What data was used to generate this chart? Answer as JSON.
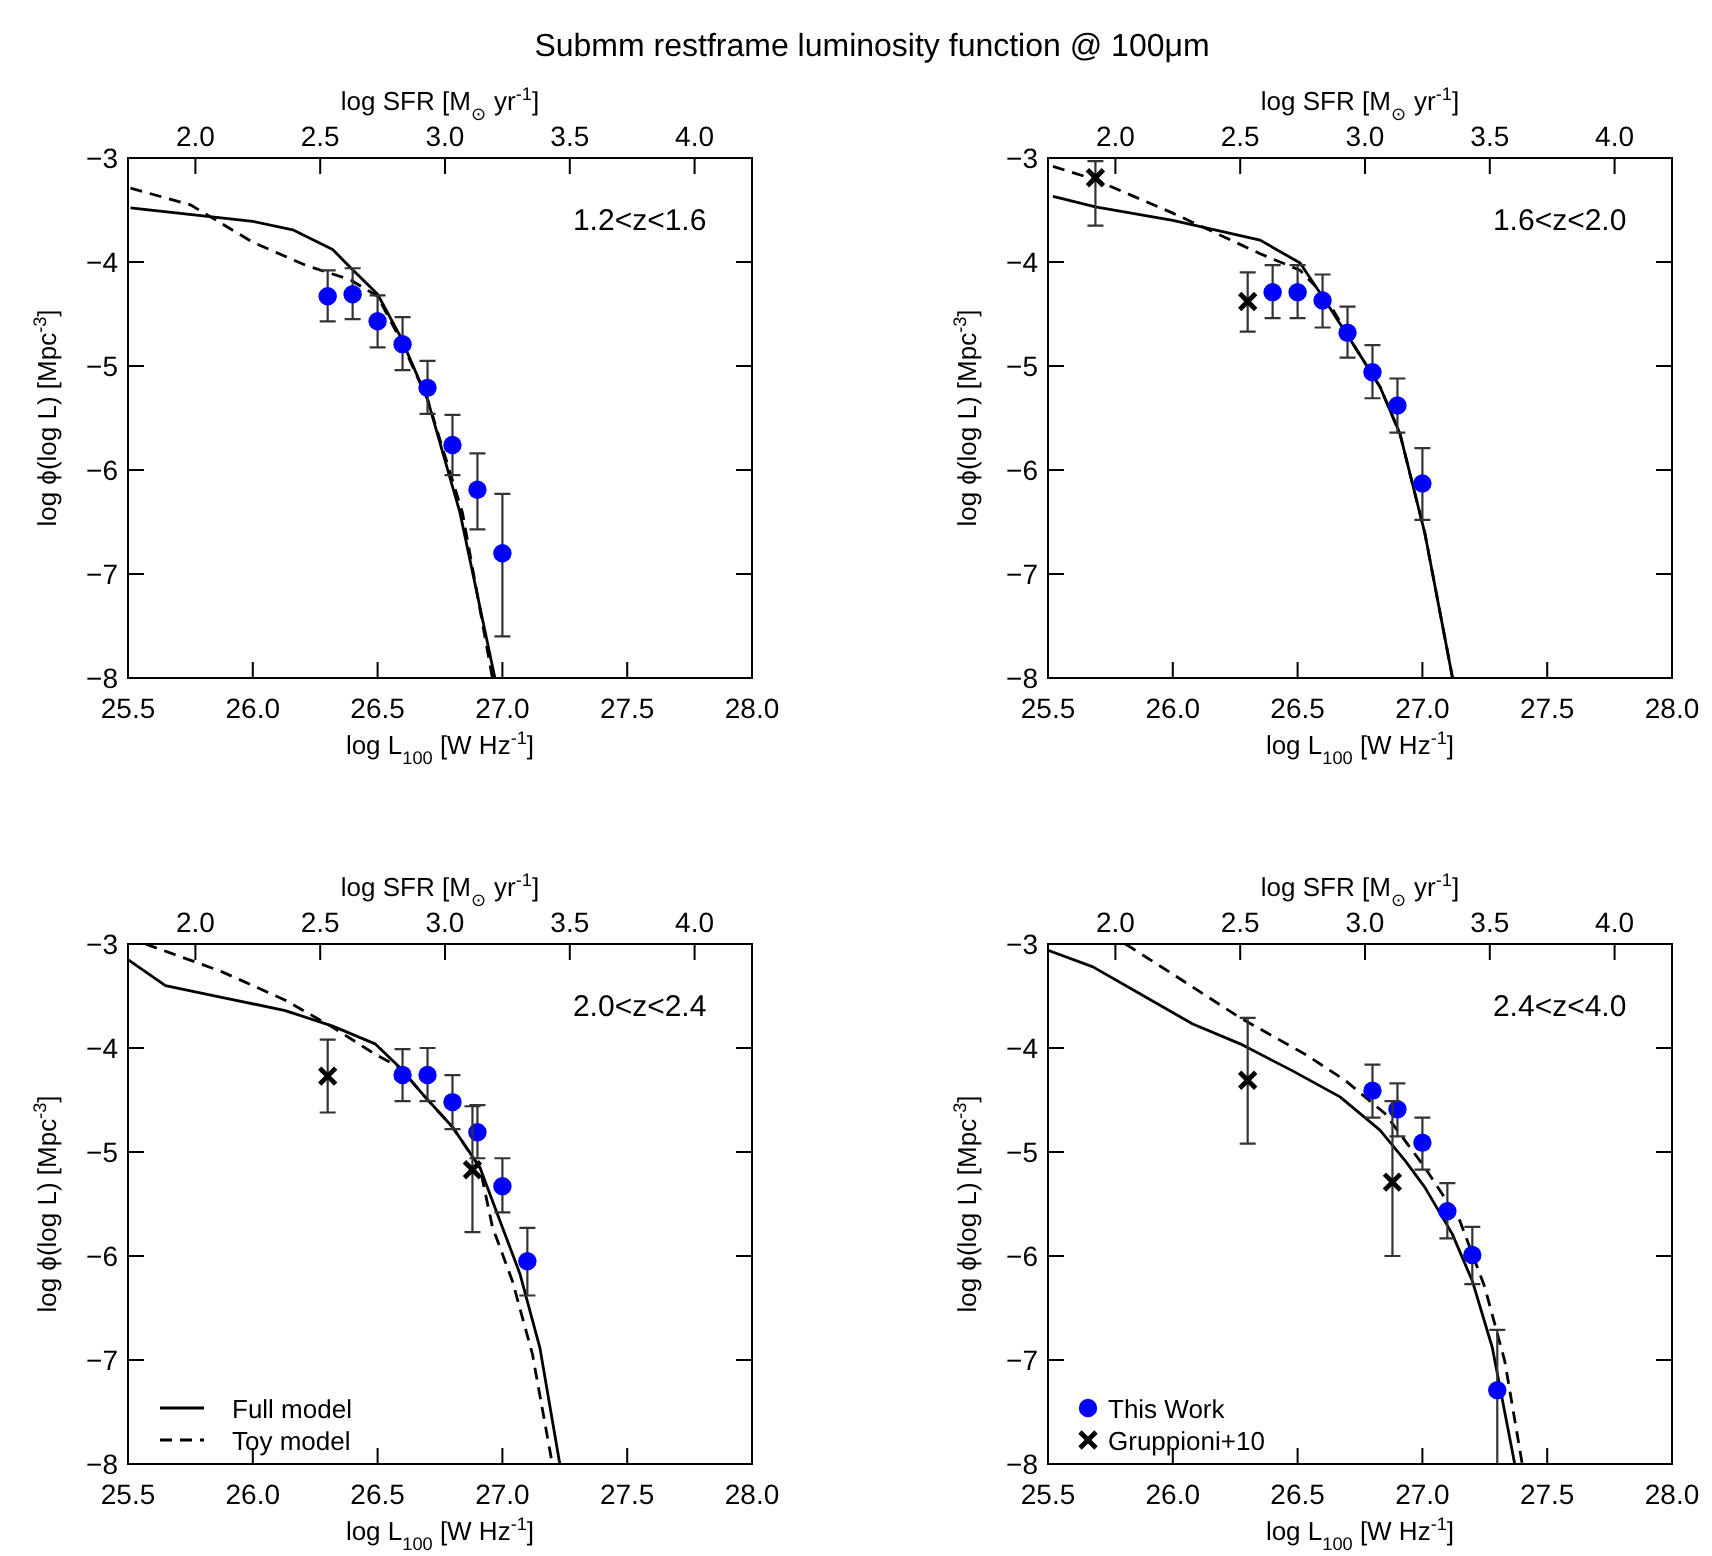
{
  "chart_data": [
    {
      "type": "line",
      "title": "Submm restframe luminosity function @ 100μm",
      "xlabel": "log L$_{100}$ [W Hz$^{-1}$]",
      "ylabel": "log ϕ(log L) [Mpc$^{-3}$]",
      "x2label": "log SFR [M$_{⊙}$ yr$^{-1}$]",
      "xlim": [
        25.5,
        28.0
      ],
      "xticks": [
        {
          "value": 25.5,
          "label": "25.5"
        },
        {
          "value": 26,
          "label": "26.0"
        },
        {
          "value": 26.5,
          "label": "26.5"
        },
        {
          "value": 27,
          "label": "27.0"
        },
        {
          "value": 27.5,
          "label": "27.5"
        },
        {
          "value": 28,
          "label": "28.0"
        }
      ],
      "x2lim": [
        1.73,
        4.23
      ],
      "x2ticks": [
        {
          "value": 2,
          "label": "2.0"
        },
        {
          "value": 2.5,
          "label": "2.5"
        },
        {
          "value": 3,
          "label": "3.0"
        },
        {
          "value": 3.5,
          "label": "3.5"
        },
        {
          "value": 4,
          "label": "4.0"
        }
      ],
      "ylim": [
        -8,
        -3
      ],
      "yticks": [
        -8,
        -7,
        -6,
        -5,
        -4,
        -3
      ],
      "annotations": [
        "1.2<z<1.6"
      ],
      "series": [
        {
          "type": "line",
          "color": "#000000",
          "line_style": "solid",
          "marker": "none",
          "x": [
            25.51,
            26.0,
            26.16,
            26.32,
            26.39,
            26.5,
            26.59,
            26.7,
            26.83,
            26.97
          ],
          "values": [
            -3.48,
            -3.61,
            -3.69,
            -3.88,
            -4.05,
            -4.31,
            -4.71,
            -5.32,
            -6.41,
            -8.0
          ]
        },
        {
          "type": "line",
          "color": "#000000",
          "line_style": "dashed",
          "marker": "none",
          "x": [
            25.51,
            25.75,
            26.0,
            26.21,
            26.39,
            26.5,
            26.59,
            26.7,
            26.84,
            26.96
          ],
          "values": [
            -3.29,
            -3.45,
            -3.81,
            -4.03,
            -4.17,
            -4.33,
            -4.74,
            -5.32,
            -6.41,
            -8.0
          ]
        },
        {
          "type": "scatter",
          "color": "#0000ff",
          "marker": "circle",
          "x": [
            26.3,
            26.4,
            26.5,
            26.6,
            26.7,
            26.8,
            26.9,
            27.0
          ],
          "values": [
            -4.33,
            -4.31,
            -4.57,
            -4.79,
            -5.21,
            -5.76,
            -6.19,
            -6.8
          ],
          "errors": [
            [
              -4.57,
              -4.08
            ],
            [
              -4.55,
              -4.06
            ],
            [
              -4.82,
              -4.32
            ],
            [
              -5.04,
              -4.53
            ],
            [
              -5.46,
              -4.95
            ],
            [
              -6.05,
              -5.47
            ],
            [
              -6.57,
              -5.84
            ],
            [
              -7.6,
              -6.23
            ]
          ]
        }
      ]
    },
    {
      "type": "line",
      "xlabel": "log L$_{100}$ [W Hz$^{-1}$]",
      "ylabel": "log ϕ(log L) [Mpc$^{-3}$]",
      "x2label": "log SFR [M$_{⊙}$ yr$^{-1}$]",
      "xlim": [
        25.5,
        28.0
      ],
      "xticks": [
        {
          "value": 25.5,
          "label": "25.5"
        },
        {
          "value": 26,
          "label": "26.0"
        },
        {
          "value": 26.5,
          "label": "26.5"
        },
        {
          "value": 27,
          "label": "27.0"
        },
        {
          "value": 27.5,
          "label": "27.5"
        },
        {
          "value": 28,
          "label": "28.0"
        }
      ],
      "x2lim": [
        1.73,
        4.23
      ],
      "x2ticks": [
        {
          "value": 2,
          "label": "2.0"
        },
        {
          "value": 2.5,
          "label": "2.5"
        },
        {
          "value": 3,
          "label": "3.0"
        },
        {
          "value": 3.5,
          "label": "3.5"
        },
        {
          "value": 4,
          "label": "4.0"
        }
      ],
      "ylim": [
        -8,
        -3
      ],
      "yticks": [
        -8,
        -7,
        -6,
        -5,
        -4,
        -3
      ],
      "annotations": [
        "1.6<z<2.0"
      ],
      "series": [
        {
          "type": "line",
          "color": "#000000",
          "line_style": "solid",
          "marker": "none",
          "x": [
            25.52,
            25.69,
            26.0,
            26.35,
            26.51,
            26.61,
            26.72,
            26.83,
            26.91,
            27.01,
            27.12
          ],
          "values": [
            -3.37,
            -3.47,
            -3.6,
            -3.79,
            -4.01,
            -4.37,
            -4.78,
            -5.2,
            -5.65,
            -6.61,
            -7.99
          ]
        },
        {
          "type": "line",
          "color": "#000000",
          "line_style": "dashed",
          "marker": "none",
          "x": [
            25.52,
            25.69,
            26.0,
            26.35,
            26.51,
            26.61,
            26.72,
            26.83,
            26.91,
            27.01,
            27.12
          ],
          "values": [
            -3.08,
            -3.21,
            -3.53,
            -3.92,
            -4.08,
            -4.33,
            -4.78,
            -5.2,
            -5.65,
            -6.61,
            -7.99
          ]
        },
        {
          "type": "scatter",
          "color": "#0000ff",
          "marker": "circle",
          "x": [
            26.4,
            26.5,
            26.6,
            26.7,
            26.8,
            26.9,
            27.0
          ],
          "values": [
            -4.29,
            -4.29,
            -4.37,
            -4.68,
            -5.06,
            -5.38,
            -6.13
          ],
          "errors": [
            [
              -4.54,
              -4.03
            ],
            [
              -4.54,
              -4.03
            ],
            [
              -4.63,
              -4.12
            ],
            [
              -4.92,
              -4.43
            ],
            [
              -5.31,
              -4.8
            ],
            [
              -5.64,
              -5.12
            ],
            [
              -6.48,
              -5.79
            ]
          ]
        },
        {
          "type": "scatter",
          "color": "#000000",
          "marker": "cross",
          "x": [
            25.69,
            26.3
          ],
          "values": [
            -3.19,
            -4.38
          ],
          "errors": [
            [
              -3.65,
              -3.03
            ],
            [
              -4.67,
              -4.1
            ]
          ]
        }
      ]
    },
    {
      "type": "line",
      "xlabel": "log L$_{100}$ [W Hz$^{-1}$]",
      "ylabel": "log ϕ(log L) [Mpc$^{-3}$]",
      "x2label": "log SFR [M$_{⊙}$ yr$^{-1}$]",
      "xlim": [
        25.5,
        28.0
      ],
      "xticks": [
        {
          "value": 25.5,
          "label": "25.5"
        },
        {
          "value": 26,
          "label": "26.0"
        },
        {
          "value": 26.5,
          "label": "26.5"
        },
        {
          "value": 27,
          "label": "27.0"
        },
        {
          "value": 27.5,
          "label": "27.5"
        },
        {
          "value": 28,
          "label": "28.0"
        }
      ],
      "x2lim": [
        1.73,
        4.23
      ],
      "x2ticks": [
        {
          "value": 2,
          "label": "2.0"
        },
        {
          "value": 2.5,
          "label": "2.5"
        },
        {
          "value": 3,
          "label": "3.0"
        },
        {
          "value": 3.5,
          "label": "3.5"
        },
        {
          "value": 4,
          "label": "4.0"
        }
      ],
      "ylim": [
        -8,
        -3
      ],
      "yticks": [
        -8,
        -7,
        -6,
        -5,
        -4,
        -3
      ],
      "annotations": [
        "2.0<z<2.4"
      ],
      "legend": "bottom left",
      "series": [
        {
          "name": "Full model",
          "type": "line",
          "color": "#000000",
          "line_style": "solid",
          "marker": "none",
          "x": [
            25.5,
            25.65,
            25.87,
            26.13,
            26.32,
            26.49,
            26.59,
            26.69,
            26.8,
            26.91,
            26.99,
            27.07,
            27.15,
            27.23
          ],
          "values": [
            -3.15,
            -3.4,
            -3.51,
            -3.64,
            -3.79,
            -3.96,
            -4.19,
            -4.47,
            -4.76,
            -5.15,
            -5.66,
            -6.17,
            -6.88,
            -8.0
          ]
        },
        {
          "name": "Toy model",
          "type": "line",
          "color": "#000000",
          "line_style": "dashed",
          "marker": "none",
          "x": [
            25.57,
            25.87,
            26.13,
            26.32,
            26.49,
            26.59,
            26.69,
            26.8,
            26.91,
            26.96,
            27.04,
            27.12,
            27.2
          ],
          "values": [
            -3.0,
            -3.26,
            -3.54,
            -3.8,
            -4.06,
            -4.19,
            -4.47,
            -4.76,
            -5.15,
            -5.72,
            -6.24,
            -6.94,
            -8.0
          ]
        },
        {
          "type": "scatter",
          "color": "#0000ff",
          "marker": "circle",
          "x": [
            26.6,
            26.7,
            26.8,
            26.9,
            27.0,
            27.1
          ],
          "values": [
            -4.26,
            -4.26,
            -4.52,
            -4.81,
            -5.33,
            -6.05
          ],
          "errors": [
            [
              -4.51,
              -4.01
            ],
            [
              -4.51,
              -4.0
            ],
            [
              -4.78,
              -4.26
            ],
            [
              -5.06,
              -4.55
            ],
            [
              -5.58,
              -5.06
            ],
            [
              -6.38,
              -5.73
            ]
          ]
        },
        {
          "type": "scatter",
          "color": "#000000",
          "marker": "cross",
          "x": [
            26.3,
            26.88
          ],
          "values": [
            -4.27,
            -5.17
          ],
          "errors": [
            [
              -4.62,
              -3.92
            ],
            [
              -5.77,
              -4.56
            ]
          ]
        }
      ]
    },
    {
      "type": "line",
      "xlabel": "log L$_{100}$ [W Hz$^{-1}$]",
      "ylabel": "log ϕ(log L) [Mpc$^{-3}$]",
      "x2label": "log SFR [M$_{⊙}$ yr$^{-1}$]",
      "xlim": [
        25.5,
        28.0
      ],
      "xticks": [
        {
          "value": 25.5,
          "label": "25.5"
        },
        {
          "value": 26,
          "label": "26.0"
        },
        {
          "value": 26.5,
          "label": "26.5"
        },
        {
          "value": 27,
          "label": "27.0"
        },
        {
          "value": 27.5,
          "label": "27.5"
        },
        {
          "value": 28,
          "label": "28.0"
        }
      ],
      "x2lim": [
        1.73,
        4.23
      ],
      "x2ticks": [
        {
          "value": 2,
          "label": "2.0"
        },
        {
          "value": 2.5,
          "label": "2.5"
        },
        {
          "value": 3,
          "label": "3.0"
        },
        {
          "value": 3.5,
          "label": "3.5"
        },
        {
          "value": 4,
          "label": "4.0"
        }
      ],
      "ylim": [
        -8,
        -3
      ],
      "yticks": [
        -8,
        -7,
        -6,
        -5,
        -4,
        -3
      ],
      "annotations": [
        "2.4<z<4.0"
      ],
      "legend": "bottom left",
      "series": [
        {
          "type": "line",
          "color": "#000000",
          "line_style": "solid",
          "marker": "none",
          "x": [
            25.5,
            25.68,
            25.87,
            26.08,
            26.27,
            26.48,
            26.67,
            26.83,
            26.93,
            27.01,
            27.12,
            27.2,
            27.28,
            27.37
          ],
          "values": [
            -3.06,
            -3.22,
            -3.48,
            -3.77,
            -3.96,
            -4.22,
            -4.47,
            -4.79,
            -5.08,
            -5.34,
            -5.79,
            -6.24,
            -6.88,
            -8.0
          ]
        },
        {
          "type": "line",
          "color": "#000000",
          "line_style": "dashed",
          "marker": "none",
          "x": [
            25.81,
            26.0,
            26.27,
            26.53,
            26.69,
            26.85,
            27.01,
            27.15,
            27.25,
            27.33,
            27.4
          ],
          "values": [
            -3.0,
            -3.29,
            -3.71,
            -4.06,
            -4.31,
            -4.63,
            -5.15,
            -5.66,
            -6.3,
            -7.01,
            -8.0
          ]
        },
        {
          "name": "This Work",
          "type": "scatter",
          "color": "#0000ff",
          "marker": "circle",
          "x": [
            26.8,
            26.9,
            27.0,
            27.1,
            27.2,
            27.3
          ],
          "values": [
            -4.41,
            -4.59,
            -4.91,
            -5.57,
            -5.99,
            -7.29
          ],
          "errors": [
            [
              -4.67,
              -4.16
            ],
            [
              -4.85,
              -4.34
            ],
            [
              -5.17,
              -4.67
            ],
            [
              -5.83,
              -5.3
            ],
            [
              -6.27,
              -5.72
            ],
            [
              -8.0,
              -6.71
            ]
          ]
        },
        {
          "name": "Gruppioni+10",
          "type": "scatter",
          "color": "#000000",
          "marker": "cross",
          "x": [
            26.3,
            26.88
          ],
          "values": [
            -4.31,
            -5.29
          ],
          "errors": [
            [
              -4.92,
              -3.71
            ],
            [
              -6.0,
              -4.51
            ]
          ]
        }
      ]
    }
  ]
}
